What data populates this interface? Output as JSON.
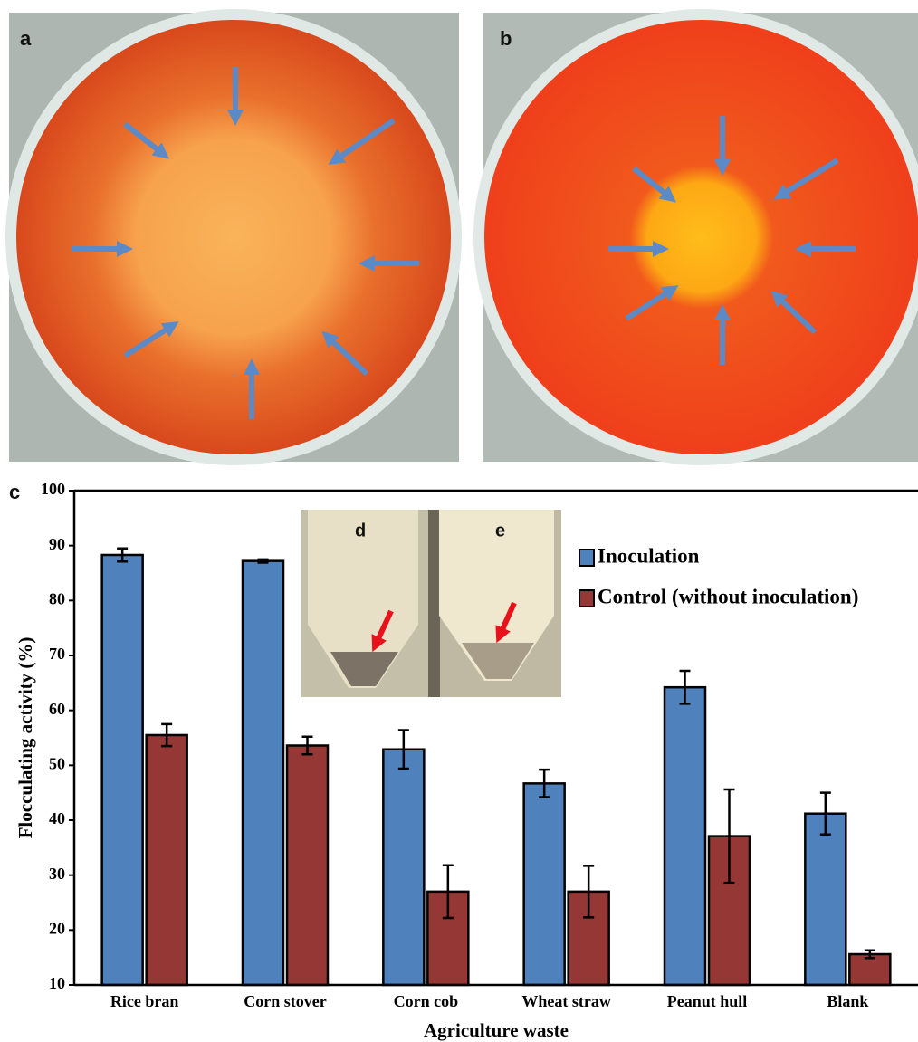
{
  "panel_labels": [
    "a",
    "b",
    "c",
    "d",
    "e"
  ],
  "chart_data": {
    "type": "bar",
    "xlabel": "Agriculture waste",
    "ylabel": "Flocculating activity (%)",
    "categories": [
      "Rice bran",
      "Corn stover",
      "Corn cob",
      "Wheat straw",
      "Peanut hull",
      "Blank"
    ],
    "series": [
      {
        "name": "Inoculation",
        "color": "#4f81bd",
        "values": [
          88.3,
          87.2,
          52.9,
          46.7,
          64.2,
          41.2
        ],
        "errors": [
          1.2,
          0.3,
          3.5,
          2.5,
          3.0,
          3.8
        ]
      },
      {
        "name": "Control (without inoculation)",
        "color": "#953735",
        "values": [
          55.5,
          53.6,
          27.0,
          27.0,
          37.1,
          15.6
        ],
        "errors": [
          2.0,
          1.6,
          4.8,
          4.7,
          8.5,
          0.7
        ]
      }
    ],
    "ylim": [
      10,
      100
    ],
    "yticks": [
      10,
      20,
      30,
      40,
      50,
      60,
      70,
      80,
      90,
      100
    ]
  }
}
